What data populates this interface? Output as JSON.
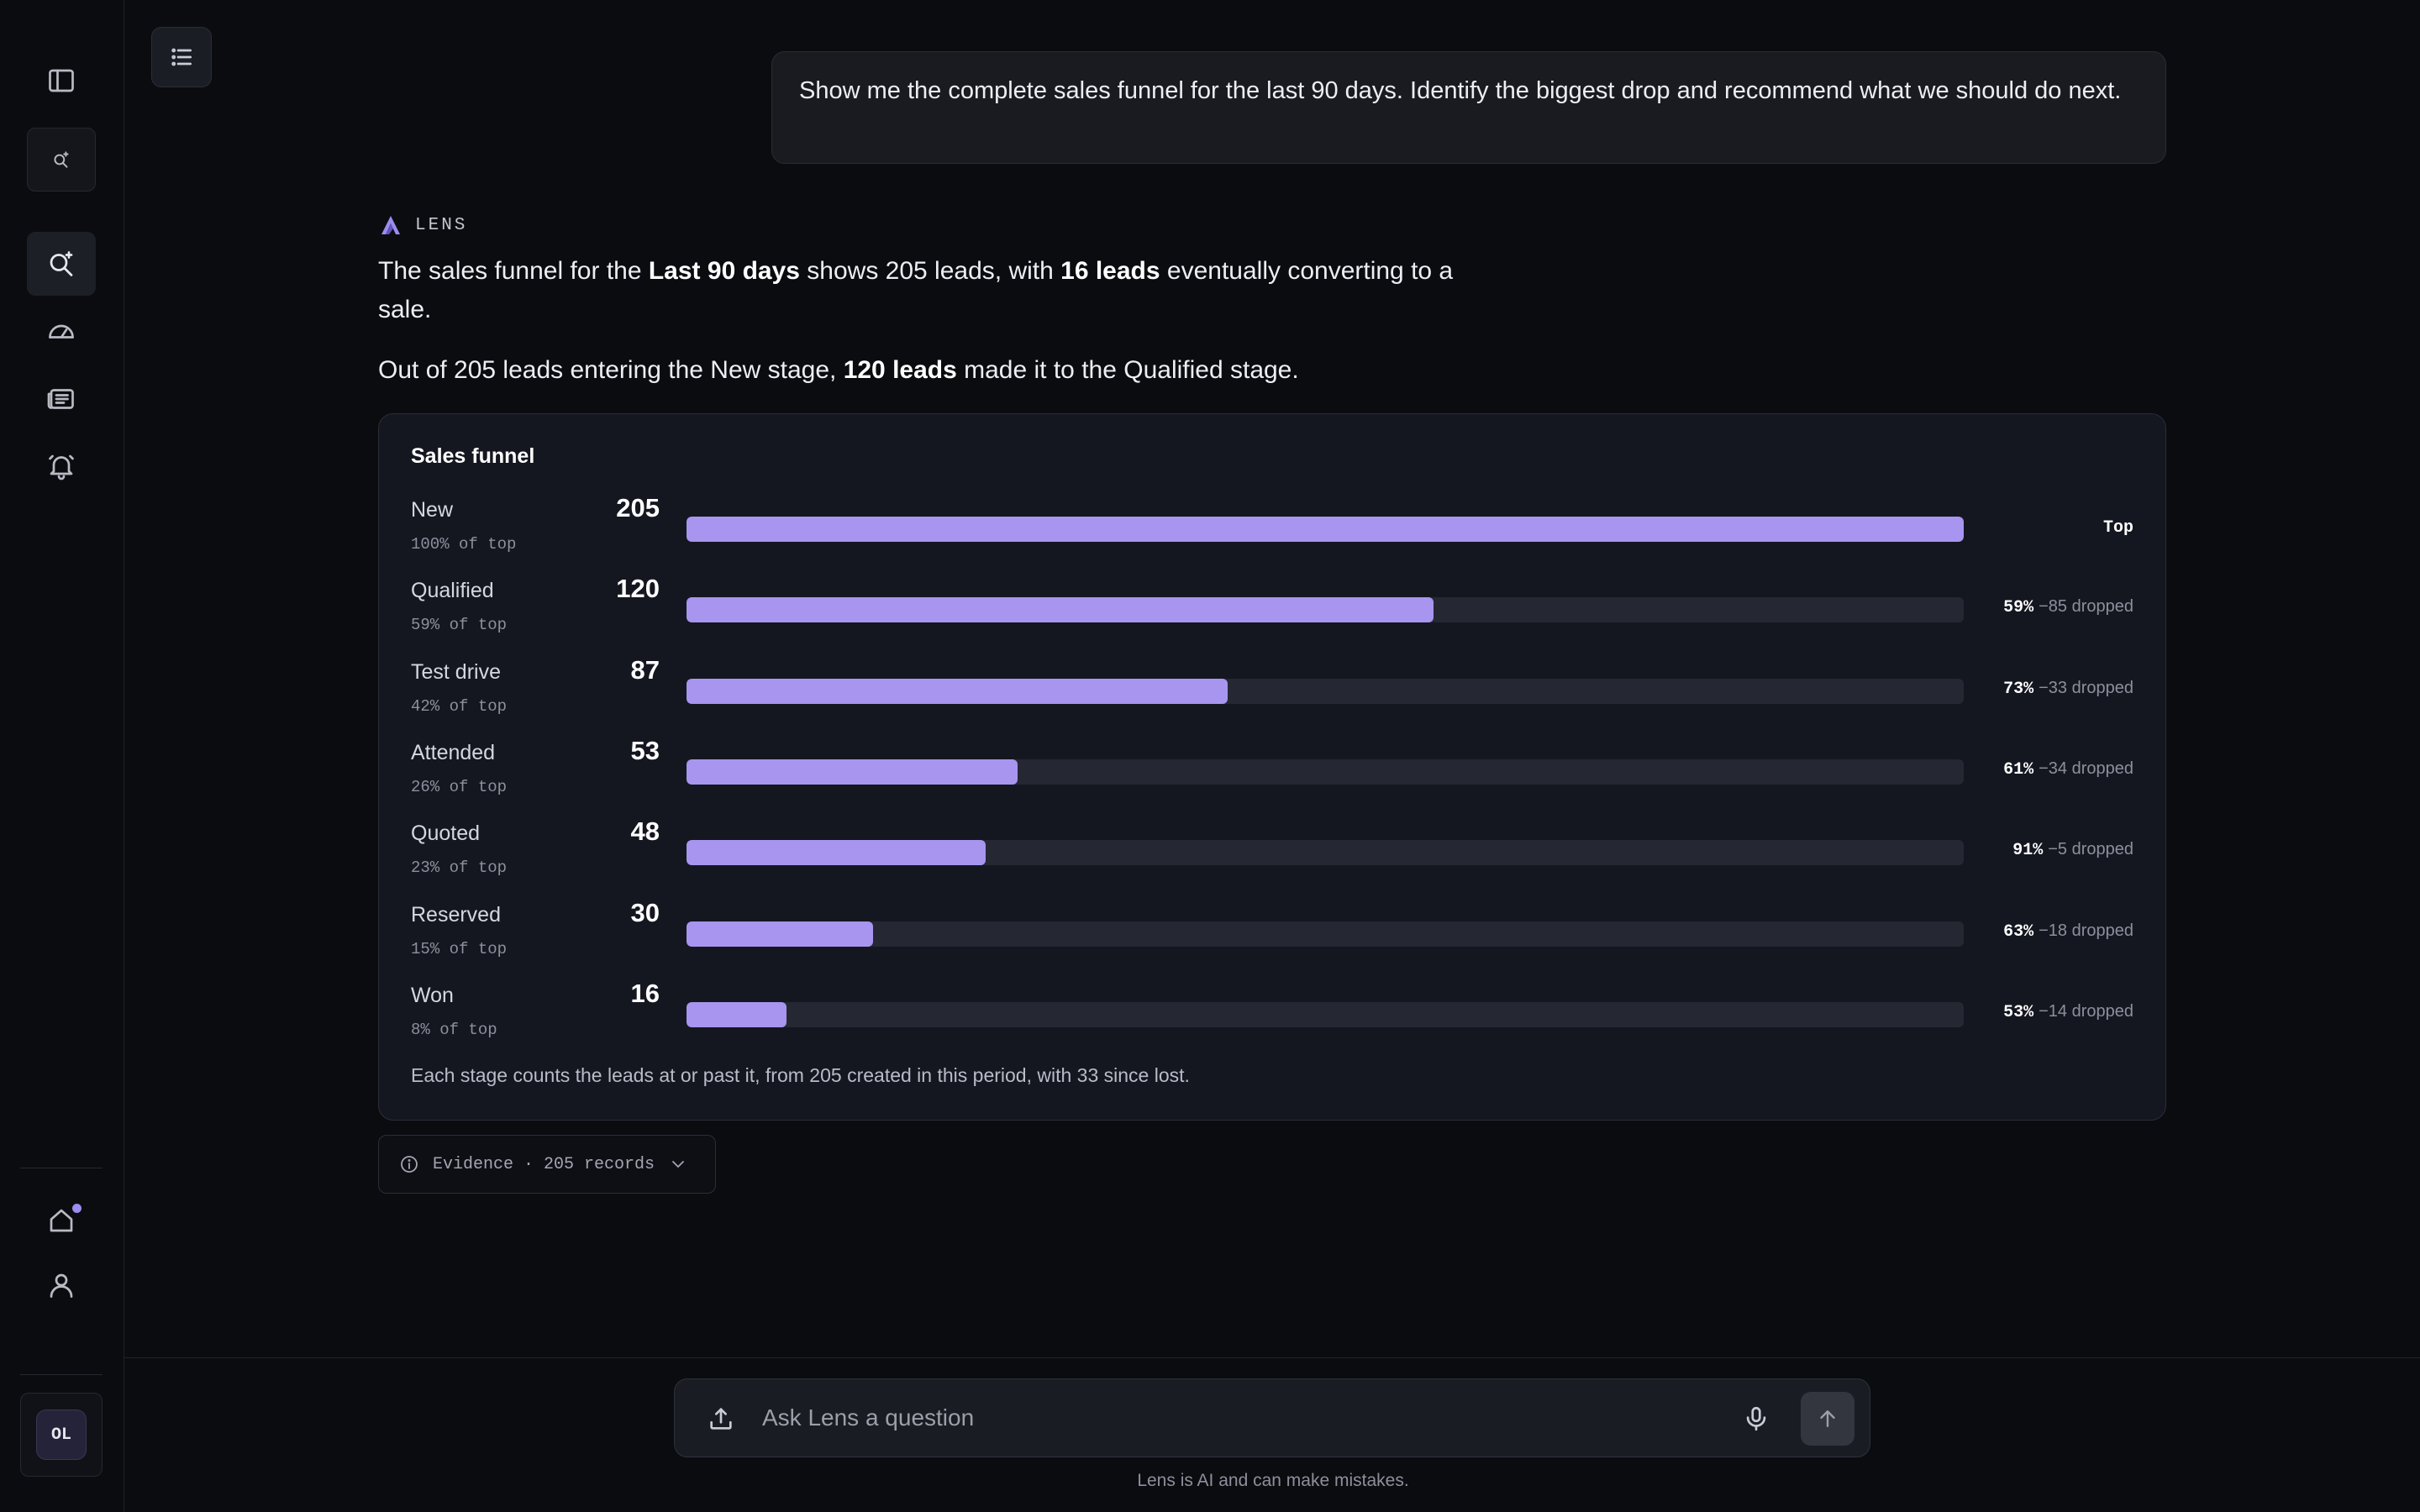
{
  "sidebar": {
    "avatar_initials": "OL"
  },
  "user_message": "Show me the complete sales funnel for the last 90 days. Identify the biggest drop and recommend what we should do next.",
  "assistant": {
    "name": "LENS",
    "para1": {
      "a": "The sales funnel for the ",
      "b": "Last 90 days",
      "c": " shows 205 leads, with ",
      "d": "16 leads",
      "e": " eventually converting to a sale."
    },
    "para2": {
      "a": "Out of 205 leads entering the New stage, ",
      "b": "120 leads",
      "c": " made it to the Qualified stage."
    }
  },
  "funnel": {
    "title": "Sales funnel",
    "top_label": "Top",
    "stages": [
      {
        "label": "New",
        "count": "205",
        "share": "100% of top",
        "fraction": 1.0,
        "conversion": "",
        "dropped": ""
      },
      {
        "label": "Qualified",
        "count": "120",
        "share": "59% of top",
        "fraction": 0.585,
        "conversion": "59%",
        "dropped": "−85 dropped"
      },
      {
        "label": "Test drive",
        "count": "87",
        "share": "42% of top",
        "fraction": 0.424,
        "conversion": "73%",
        "dropped": "−33 dropped"
      },
      {
        "label": "Attended",
        "count": "53",
        "share": "26% of top",
        "fraction": 0.259,
        "conversion": "61%",
        "dropped": "−34 dropped"
      },
      {
        "label": "Quoted",
        "count": "48",
        "share": "23% of top",
        "fraction": 0.234,
        "conversion": "91%",
        "dropped": "−5 dropped"
      },
      {
        "label": "Reserved",
        "count": "30",
        "share": "15% of top",
        "fraction": 0.146,
        "conversion": "63%",
        "dropped": "−18 dropped"
      },
      {
        "label": "Won",
        "count": "16",
        "share": "8% of top",
        "fraction": 0.078,
        "conversion": "53%",
        "dropped": "−14 dropped"
      }
    ],
    "footnote": "Each stage counts the leads at or past it, from 205 created in this period, with 33 since lost."
  },
  "evidence": {
    "label": "Evidence · 205 records"
  },
  "composer": {
    "placeholder": "Ask Lens a question",
    "disclaimer": "Lens is AI and can make mistakes."
  },
  "colors": {
    "accent": "#a895ef",
    "track": "#252833",
    "background": "#0b0c10"
  }
}
